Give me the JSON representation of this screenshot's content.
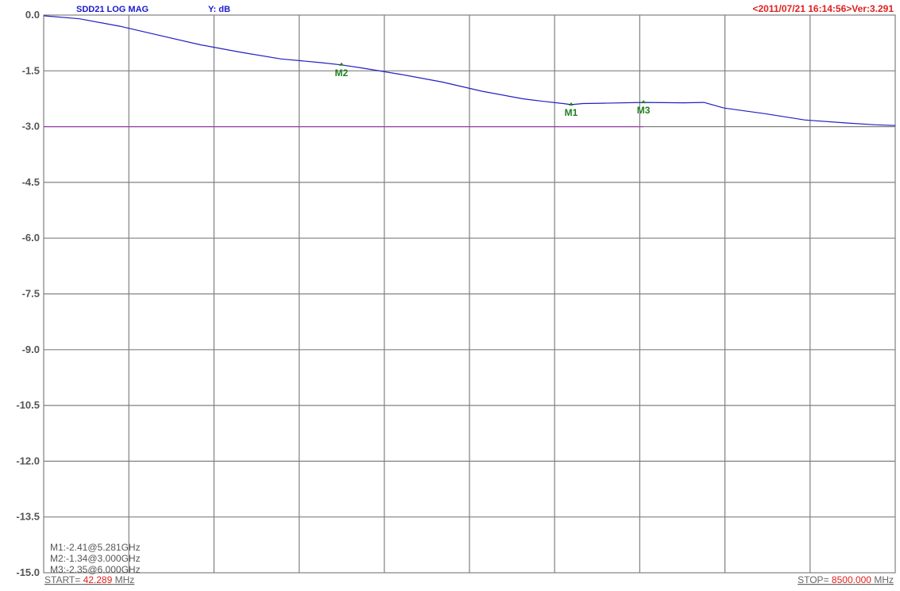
{
  "header": {
    "trace_label": "SDD21  LOG MAG",
    "scale_label": "Y: dB",
    "timestamp_version": "<2011/07/21 16:14:56>Ver:3.291"
  },
  "footer": {
    "start_prefix": "START=",
    "start_value": "42.289",
    "start_unit": "MHz",
    "stop_prefix": "STOP=",
    "stop_value": "8500.000",
    "stop_unit": "MHz"
  },
  "marker_readouts": [
    "M1:-2.41@5.281GHz",
    "M2:-1.34@3.000GHz",
    "M3:-2.35@6.000GHz"
  ],
  "colors": {
    "trace": "#2020c0",
    "limit_line": "#a040b0",
    "marker": "#208020",
    "header_left": "#1a1acc",
    "header_right": "#e02020",
    "footer_value": "#e02020",
    "grid": "#808080"
  },
  "chart_data": {
    "type": "line",
    "ylabel": "Y: dB",
    "x_range_mhz": [
      42.289,
      8500.0
    ],
    "ylim": [
      -15.0,
      0.0
    ],
    "y_ticks": [
      "0.0",
      "-1.5",
      "-3.0",
      "-4.5",
      "-6.0",
      "-7.5",
      "-9.0",
      "-10.5",
      "-12.0",
      "-13.5",
      "-15.0"
    ],
    "x_divisions": 10,
    "grid": true,
    "series": [
      {
        "name": "SDD21",
        "x": [
          42.289,
          400,
          800,
          1200,
          1600,
          2000,
          2400,
          2800,
          3000,
          3200,
          3600,
          4000,
          4400,
          4800,
          5000,
          5200,
          5281,
          5400,
          5600,
          6000,
          6400,
          6600,
          6800,
          7200,
          7600,
          8000,
          8300,
          8500
        ],
        "values": [
          -0.02,
          -0.1,
          -0.3,
          -0.55,
          -0.8,
          -1.0,
          -1.18,
          -1.28,
          -1.34,
          -1.42,
          -1.6,
          -1.8,
          -2.05,
          -2.25,
          -2.32,
          -2.38,
          -2.41,
          -2.38,
          -2.37,
          -2.35,
          -2.36,
          -2.35,
          -2.5,
          -2.65,
          -2.82,
          -2.9,
          -2.95,
          -2.97
        ]
      }
    ],
    "limit_line": {
      "y": -3.0,
      "x_range_mhz": [
        42.289,
        6000
      ]
    },
    "markers": [
      {
        "name": "M1",
        "x_mhz": 5281,
        "y": -2.41
      },
      {
        "name": "M2",
        "x_mhz": 3000,
        "y": -1.34
      },
      {
        "name": "M3",
        "x_mhz": 6000,
        "y": -2.35
      }
    ]
  }
}
